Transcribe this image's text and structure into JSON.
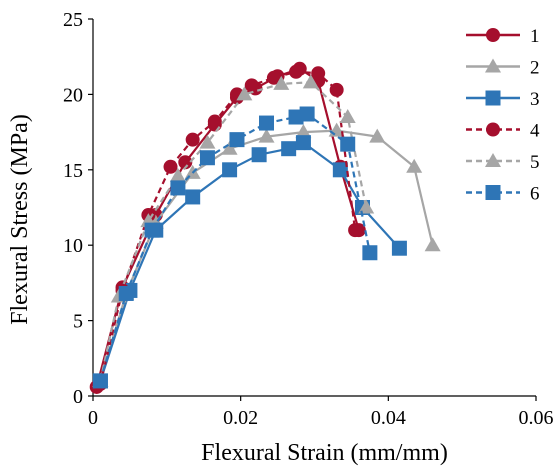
{
  "chart_data": {
    "type": "line",
    "title": "",
    "xlabel": "Flexural Strain (mm/mm)",
    "ylabel": "Flexural Stress (MPa)",
    "xlim": [
      0,
      0.06
    ],
    "ylim": [
      0,
      25
    ],
    "xticks": [
      "0",
      "0.02",
      "0.04",
      "0.06"
    ],
    "yticks": [
      "0",
      "5",
      "10",
      "15",
      "20",
      "25"
    ],
    "grid": false,
    "legend_position": "right",
    "series": [
      {
        "name": "1",
        "color": "#a50f2d",
        "dash": false,
        "marker": "circle",
        "x": [
          0.0005,
          0.004,
          0.0085,
          0.0125,
          0.0165,
          0.0195,
          0.022,
          0.025,
          0.028,
          0.0305,
          0.0335,
          0.036
        ],
        "y": [
          0.6,
          7.2,
          12.0,
          15.5,
          18.0,
          19.8,
          20.4,
          21.2,
          21.7,
          20.9,
          15.2,
          11.0
        ]
      },
      {
        "name": "2",
        "color": "#a6a6a6",
        "dash": false,
        "marker": "triangle",
        "x": [
          0.001,
          0.0045,
          0.0085,
          0.0135,
          0.0185,
          0.0235,
          0.0285,
          0.033,
          0.0385,
          0.0435,
          0.046
        ],
        "y": [
          1.0,
          6.8,
          11.5,
          14.8,
          16.4,
          17.2,
          17.5,
          17.6,
          17.2,
          15.2,
          10.0
        ]
      },
      {
        "name": "3",
        "color": "#2e75b6",
        "dash": false,
        "marker": "square",
        "x": [
          0.001,
          0.005,
          0.0085,
          0.0135,
          0.0185,
          0.0225,
          0.0265,
          0.0285,
          0.0335,
          0.0365,
          0.0415
        ],
        "y": [
          1.0,
          7.0,
          11.0,
          13.2,
          15.0,
          16.0,
          16.4,
          16.8,
          15.0,
          12.5,
          9.8
        ]
      },
      {
        "name": "4",
        "color": "#a50f2d",
        "dash": true,
        "marker": "circle",
        "x": [
          0.001,
          0.004,
          0.0075,
          0.0105,
          0.0135,
          0.0165,
          0.0195,
          0.0215,
          0.0245,
          0.0275,
          0.0305,
          0.033,
          0.0355
        ],
        "y": [
          0.8,
          7.0,
          12.0,
          15.2,
          17.0,
          18.2,
          20.0,
          20.6,
          21.1,
          21.5,
          21.4,
          20.3,
          11.0
        ]
      },
      {
        "name": "5",
        "color": "#a6a6a6",
        "dash": true,
        "marker": "triangle",
        "x": [
          0.001,
          0.0035,
          0.0075,
          0.0115,
          0.0155,
          0.0205,
          0.0255,
          0.0295,
          0.0345,
          0.037
        ],
        "y": [
          1.0,
          6.6,
          11.6,
          14.6,
          16.8,
          20.0,
          20.7,
          20.8,
          18.5,
          12.5
        ]
      },
      {
        "name": "6",
        "color": "#2e75b6",
        "dash": true,
        "marker": "square",
        "x": [
          0.001,
          0.0045,
          0.008,
          0.0115,
          0.0155,
          0.0195,
          0.0235,
          0.0275,
          0.029,
          0.0345,
          0.0375
        ],
        "y": [
          1.0,
          6.8,
          11.0,
          13.8,
          15.8,
          17.0,
          18.1,
          18.5,
          18.7,
          16.7,
          9.5
        ]
      }
    ]
  }
}
